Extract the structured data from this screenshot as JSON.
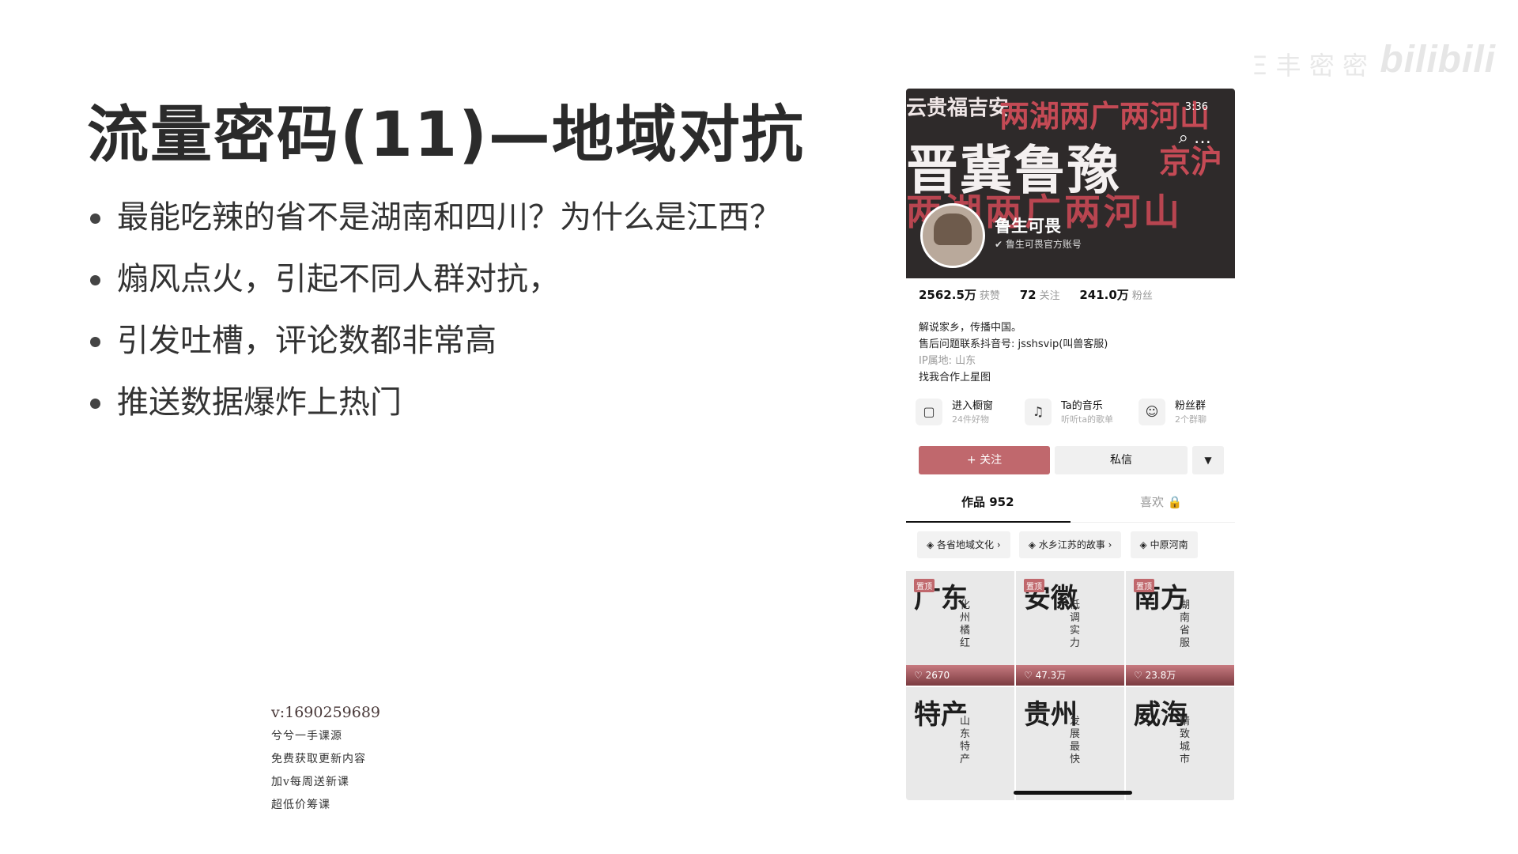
{
  "slide": {
    "title": "流量密码(11)—地域对抗",
    "bullets": [
      "最能吃辣的省不是湖南和四川？为什么是江西？",
      "煽风点火，引起不同人群对抗，",
      "引发吐槽，评论数都非常高",
      "推送数据爆炸上热门"
    ]
  },
  "watermark": {
    "contact": "v:1690259689",
    "lines": [
      "兮兮一手课源",
      "免费获取更新内容",
      "加v每周送新课",
      "超低价筹课"
    ]
  },
  "logo": {
    "brand": "bilibili",
    "subtitle": "Ξ 丰 密 密"
  },
  "profile": {
    "banner": {
      "row1a": "云贵福吉安",
      "row1b": "两湖两广两河山",
      "row2a": "晋冀鲁豫",
      "row2b": "京沪",
      "row3": "两湖两广两河山"
    },
    "status_time": "3:36",
    "username": "鲁生可畏",
    "verified": "鲁生可畏官方账号",
    "stats": [
      {
        "value": "2562.5万",
        "label": "获赞"
      },
      {
        "value": "72",
        "label": "关注"
      },
      {
        "value": "241.0万",
        "label": "粉丝"
      }
    ],
    "bio": [
      "解说家乡，传播中国。",
      "售后问题联系抖音号: jsshsvip(叫兽客服)"
    ],
    "ip": "IP属地: 山东",
    "cooperate": "找我合作上星图",
    "shortcuts": [
      {
        "title": "进入橱窗",
        "sub": "24件好物",
        "icon": "shop-icon"
      },
      {
        "title": "Ta的音乐",
        "sub": "听听ta的歌单",
        "icon": "music-icon"
      },
      {
        "title": "粉丝群",
        "sub": "2个群聊",
        "icon": "group-icon"
      }
    ],
    "follow_button": "+ 关注",
    "message_button": "私信",
    "tabs": {
      "works": "作品 952",
      "likes": "喜欢 🔒"
    },
    "collections": [
      "各省地域文化 ›",
      "水乡江苏的故事 ›",
      "中原河南"
    ],
    "videos": [
      {
        "big": "广东",
        "small": "化州橘红",
        "likes": "2670",
        "pinned": "置顶"
      },
      {
        "big": "安徽",
        "small": "低调实力",
        "likes": "47.3万",
        "pinned": "置顶"
      },
      {
        "big": "南方",
        "small": "湖南省服",
        "likes": "23.8万",
        "pinned": "置顶"
      },
      {
        "big": "特产",
        "small": "山东特产",
        "likes": "",
        "pinned": ""
      },
      {
        "big": "贵州",
        "small": "发展最快",
        "likes": "",
        "pinned": ""
      },
      {
        "big": "威海",
        "small": "精致城市",
        "likes": "",
        "pinned": ""
      }
    ]
  }
}
